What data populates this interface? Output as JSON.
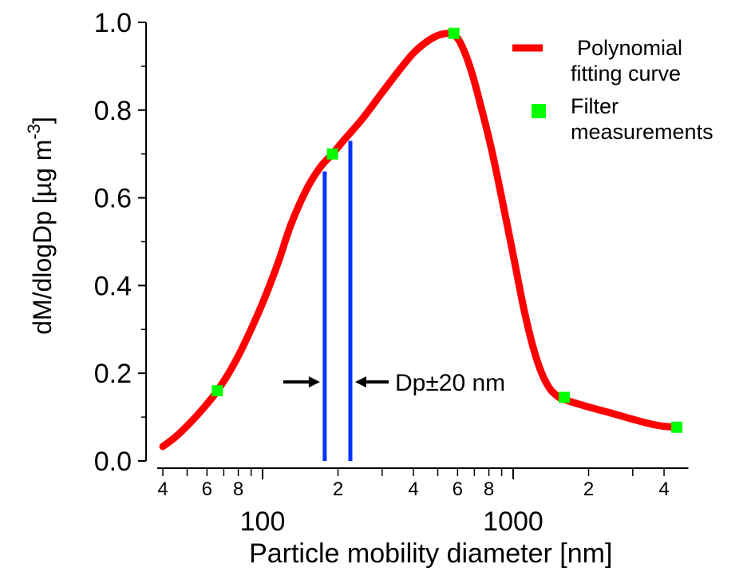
{
  "chart_data": {
    "type": "line",
    "xlabel": "Particle mobility diameter [nm]",
    "ylabel": {
      "main": "dM/dlogDp [µg m",
      "superscript": "-3",
      "suffix": "]"
    },
    "x_scale": "log",
    "xlim": [
      38,
      5000
    ],
    "ylim": [
      0,
      1.0
    ],
    "grid": false,
    "legend_position": "top-right",
    "y_ticks": [
      {
        "value": 0.0,
        "label": "0.0"
      },
      {
        "value": 0.2,
        "label": "0.2"
      },
      {
        "value": 0.4,
        "label": "0.4"
      },
      {
        "value": 0.6,
        "label": "0.6"
      },
      {
        "value": 0.8,
        "label": "0.8"
      },
      {
        "value": 1.0,
        "label": "1.0"
      }
    ],
    "x_major_ticks": [
      {
        "value": 100,
        "label": "100"
      },
      {
        "value": 1000,
        "label": "1000"
      }
    ],
    "x_minor_ticks": [
      {
        "value": 40,
        "label": "4"
      },
      {
        "value": 50,
        "label": ""
      },
      {
        "value": 60,
        "label": "6"
      },
      {
        "value": 70,
        "label": ""
      },
      {
        "value": 80,
        "label": "8"
      },
      {
        "value": 90,
        "label": ""
      },
      {
        "value": 200,
        "label": "2"
      },
      {
        "value": 300,
        "label": ""
      },
      {
        "value": 400,
        "label": "4"
      },
      {
        "value": 500,
        "label": ""
      },
      {
        "value": 600,
        "label": "6"
      },
      {
        "value": 700,
        "label": ""
      },
      {
        "value": 800,
        "label": "8"
      },
      {
        "value": 900,
        "label": ""
      },
      {
        "value": 2000,
        "label": "2"
      },
      {
        "value": 3000,
        "label": ""
      },
      {
        "value": 4000,
        "label": "4"
      }
    ],
    "series": [
      {
        "name": "Polynomial fitting curve",
        "color": "#ff0000",
        "style": "line",
        "x": [
          40,
          45,
          50,
          55,
          60,
          66,
          75,
          85,
          100,
          115,
          130,
          150,
          170,
          190,
          210,
          250,
          300,
          350,
          400,
          450,
          500,
          550,
          580,
          620,
          680,
          750,
          820,
          900,
          1000,
          1100,
          1200,
          1300,
          1400,
          1500,
          1600,
          2000,
          2500,
          3000,
          3500,
          4000,
          4500
        ],
        "y": [
          0.033,
          0.055,
          0.08,
          0.105,
          0.13,
          0.16,
          0.21,
          0.27,
          0.36,
          0.45,
          0.54,
          0.62,
          0.67,
          0.7,
          0.73,
          0.78,
          0.84,
          0.89,
          0.93,
          0.955,
          0.97,
          0.975,
          0.972,
          0.95,
          0.89,
          0.8,
          0.71,
          0.6,
          0.47,
          0.35,
          0.26,
          0.2,
          0.165,
          0.148,
          0.14,
          0.123,
          0.108,
          0.095,
          0.085,
          0.079,
          0.077
        ]
      },
      {
        "name": "Filter measurements",
        "color": "#00ff00",
        "style": "marker",
        "x": [
          66,
          190,
          580,
          1600,
          4500
        ],
        "y": [
          0.16,
          0.7,
          0.975,
          0.145,
          0.077
        ]
      }
    ],
    "vertical_lines": {
      "color": "#0033ff",
      "lines": [
        {
          "x": 177,
          "y": 0.66
        },
        {
          "x": 224,
          "y": 0.73
        }
      ]
    },
    "annotation": {
      "text": "Dp±20 nm",
      "y": 0.18
    },
    "legend": [
      {
        "label_lines": [
          "Polynomial",
          "fitting curve"
        ],
        "color": "#ff0000",
        "symbol": "line"
      },
      {
        "label_lines": [
          " Filter",
          "measurements"
        ],
        "color": "#00ff00",
        "symbol": "square"
      }
    ]
  }
}
